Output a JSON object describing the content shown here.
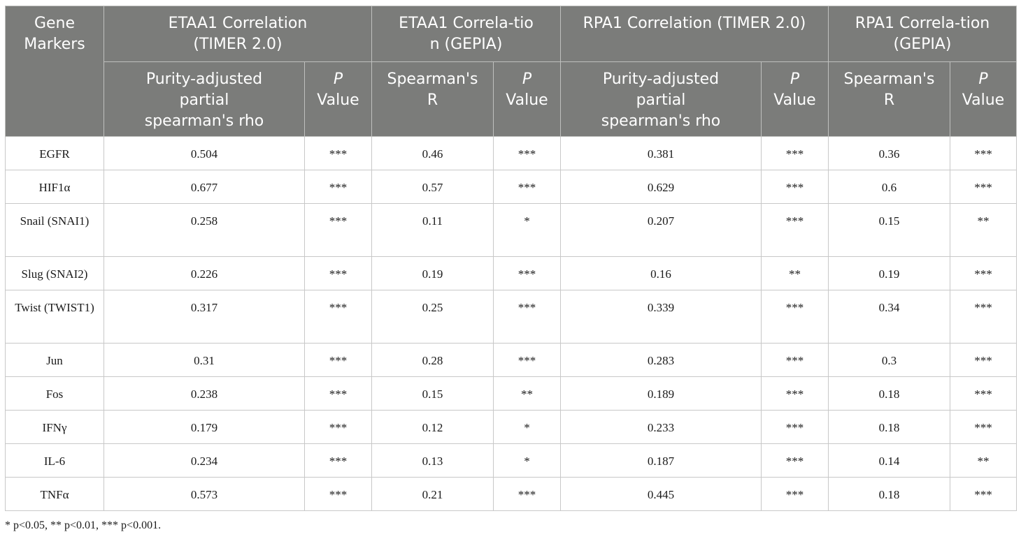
{
  "header": {
    "gene_markers": "Gene Markers",
    "groups": [
      "ETAA1 Correlation (TIMER 2.0)",
      "ETAA1 Correla-tion (GEPIA)",
      "RPA1 Correlation (TIMER 2.0)",
      "RPA1 Correla-tion (GEPIA)"
    ],
    "sub": [
      "Purity-adjusted partial spearman's rho",
      "P",
      "Value",
      "Spearman's R",
      "P",
      "Value",
      "Purity-adjusted partial spearman's rho",
      "P",
      "Value",
      "Spearman's R",
      "P",
      "Value"
    ]
  },
  "rows": [
    [
      "EGFR",
      "0.504",
      "***",
      "0.46",
      "***",
      "0.381",
      "***",
      "0.36",
      "***"
    ],
    [
      "HIF1α",
      "0.677",
      "***",
      "0.57",
      "***",
      "0.629",
      "***",
      "0.6",
      "***"
    ],
    [
      "Snail (SNAI1)",
      "0.258",
      "***",
      "0.11",
      "*",
      "0.207",
      "***",
      "0.15",
      "**"
    ],
    [
      "Slug (SNAI2)",
      "0.226",
      "***",
      "0.19",
      "***",
      "0.16",
      "**",
      "0.19",
      "***"
    ],
    [
      "Twist (TWIST1)",
      "0.317",
      "***",
      "0.25",
      "***",
      "0.339",
      "***",
      "0.34",
      "***"
    ],
    [
      "Jun",
      "0.31",
      "***",
      "0.28",
      "***",
      "0.283",
      "***",
      "0.3",
      "***"
    ],
    [
      "Fos",
      "0.238",
      "***",
      "0.15",
      "**",
      "0.189",
      "***",
      "0.18",
      "***"
    ],
    [
      "IFNγ",
      "0.179",
      "***",
      "0.12",
      "*",
      "0.233",
      "***",
      "0.18",
      "***"
    ],
    [
      "IL-6",
      "0.234",
      "***",
      "0.13",
      "*",
      "0.187",
      "***",
      "0.14",
      "**"
    ],
    [
      "TNFα",
      "0.573",
      "***",
      "0.21",
      "***",
      "0.445",
      "***",
      "0.18",
      "***"
    ]
  ],
  "footnote": "* p<0.05, ** p<0.01, *** p<0.001."
}
